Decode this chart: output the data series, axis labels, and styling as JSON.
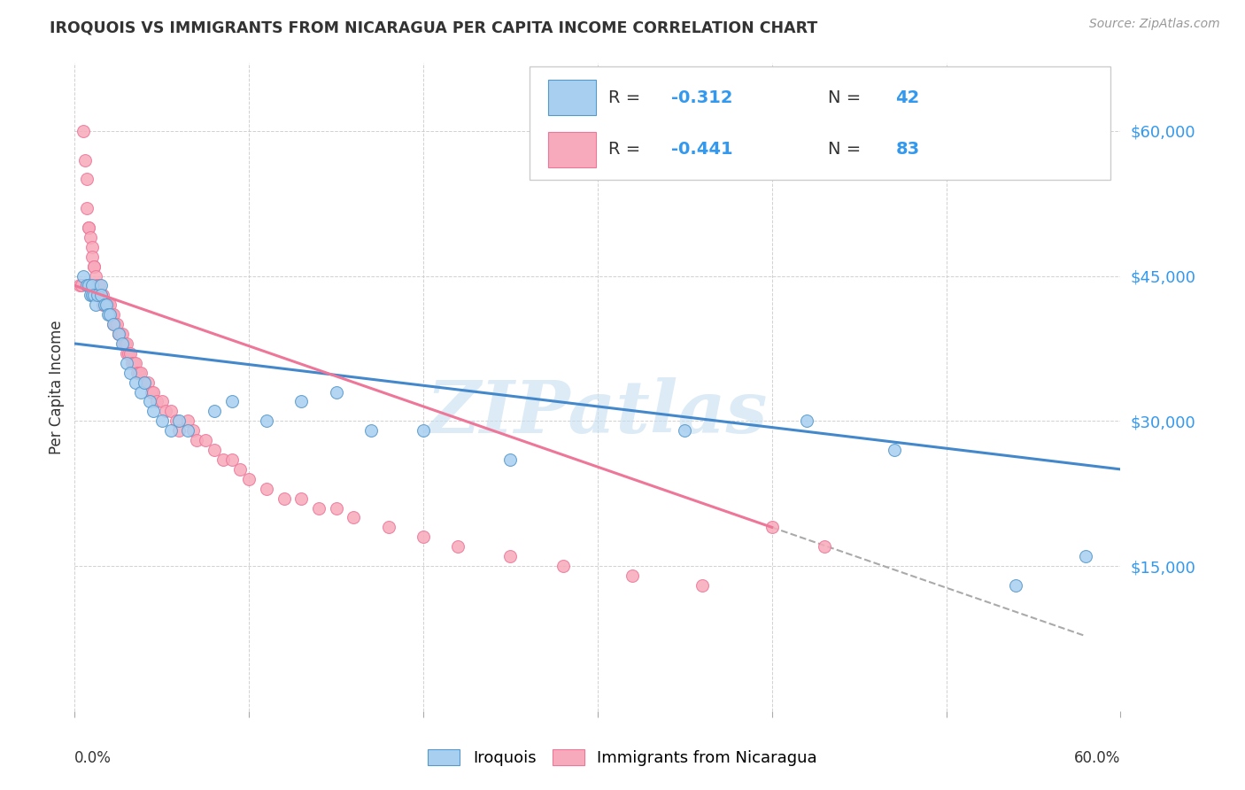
{
  "title": "IROQUOIS VS IMMIGRANTS FROM NICARAGUA PER CAPITA INCOME CORRELATION CHART",
  "source": "Source: ZipAtlas.com",
  "ylabel": "Per Capita Income",
  "yticks": [
    0,
    15000,
    30000,
    45000,
    60000
  ],
  "ytick_labels": [
    "",
    "$15,000",
    "$30,000",
    "$45,000",
    "$60,000"
  ],
  "xlim": [
    0.0,
    0.6
  ],
  "ylim": [
    0,
    67000
  ],
  "legend_r1": "-0.312",
  "legend_n1": "42",
  "legend_r2": "-0.441",
  "legend_n2": "83",
  "iroquois_color": "#A8CFF0",
  "iroquois_edge_color": "#5599CC",
  "nicaragua_color": "#F7AABB",
  "nicaragua_edge_color": "#EE7799",
  "iroquois_line_color": "#4488CC",
  "nicaragua_line_color": "#EE7799",
  "watermark": "ZIPatlas",
  "background_color": "#FFFFFF",
  "grid_color": "#CCCCCC",
  "ytick_color": "#3399EE",
  "r_color": "#3399EE",
  "n_color": "#3399EE",
  "text_color": "#333333",
  "source_color": "#999999",
  "iroquois_x": [
    0.005,
    0.007,
    0.008,
    0.009,
    0.01,
    0.01,
    0.011,
    0.012,
    0.013,
    0.015,
    0.015,
    0.017,
    0.018,
    0.019,
    0.02,
    0.022,
    0.025,
    0.027,
    0.03,
    0.032,
    0.035,
    0.038,
    0.04,
    0.043,
    0.045,
    0.05,
    0.055,
    0.06,
    0.065,
    0.08,
    0.09,
    0.11,
    0.13,
    0.15,
    0.17,
    0.2,
    0.25,
    0.35,
    0.42,
    0.47,
    0.54,
    0.58
  ],
  "iroquois_y": [
    45000,
    44000,
    44000,
    43000,
    43000,
    44000,
    43000,
    42000,
    43000,
    44000,
    43000,
    42000,
    42000,
    41000,
    41000,
    40000,
    39000,
    38000,
    36000,
    35000,
    34000,
    33000,
    34000,
    32000,
    31000,
    30000,
    29000,
    30000,
    29000,
    31000,
    32000,
    30000,
    32000,
    33000,
    29000,
    29000,
    26000,
    29000,
    30000,
    27000,
    13000,
    16000
  ],
  "nicaragua_x": [
    0.003,
    0.004,
    0.005,
    0.006,
    0.007,
    0.007,
    0.008,
    0.008,
    0.009,
    0.01,
    0.01,
    0.011,
    0.011,
    0.012,
    0.013,
    0.013,
    0.014,
    0.014,
    0.015,
    0.015,
    0.016,
    0.016,
    0.017,
    0.018,
    0.018,
    0.019,
    0.02,
    0.02,
    0.021,
    0.022,
    0.022,
    0.023,
    0.024,
    0.025,
    0.025,
    0.026,
    0.027,
    0.028,
    0.029,
    0.03,
    0.03,
    0.031,
    0.032,
    0.033,
    0.034,
    0.035,
    0.036,
    0.037,
    0.038,
    0.04,
    0.042,
    0.044,
    0.045,
    0.047,
    0.05,
    0.052,
    0.055,
    0.058,
    0.06,
    0.065,
    0.068,
    0.07,
    0.075,
    0.08,
    0.085,
    0.09,
    0.095,
    0.1,
    0.11,
    0.12,
    0.13,
    0.14,
    0.15,
    0.16,
    0.18,
    0.2,
    0.22,
    0.25,
    0.28,
    0.32,
    0.36,
    0.4,
    0.43
  ],
  "nicaragua_y": [
    44000,
    44000,
    60000,
    57000,
    55000,
    52000,
    50000,
    50000,
    49000,
    48000,
    47000,
    46000,
    46000,
    45000,
    44000,
    44000,
    44000,
    43000,
    43000,
    43000,
    43000,
    42000,
    42000,
    42000,
    42000,
    42000,
    42000,
    41000,
    41000,
    41000,
    40000,
    40000,
    40000,
    39000,
    39000,
    39000,
    39000,
    38000,
    38000,
    38000,
    37000,
    37000,
    37000,
    36000,
    36000,
    36000,
    35000,
    35000,
    35000,
    34000,
    34000,
    33000,
    33000,
    32000,
    32000,
    31000,
    31000,
    30000,
    29000,
    30000,
    29000,
    28000,
    28000,
    27000,
    26000,
    26000,
    25000,
    24000,
    23000,
    22000,
    22000,
    21000,
    21000,
    20000,
    19000,
    18000,
    17000,
    16000,
    15000,
    14000,
    13000,
    19000,
    17000
  ]
}
